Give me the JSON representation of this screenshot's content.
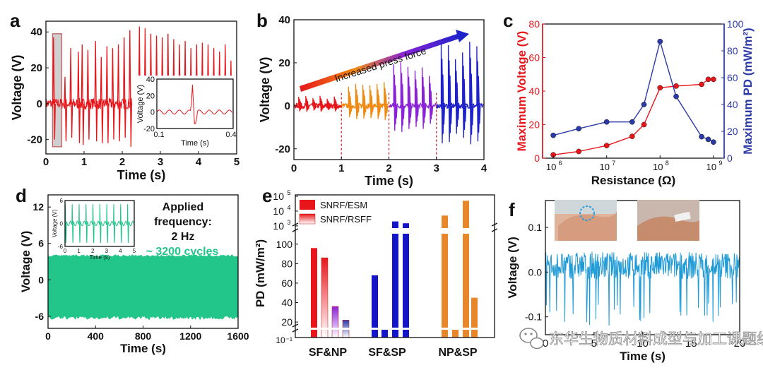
{
  "watermark": "东华生物质材料成型与加工课题组",
  "colors": {
    "red": "#e8161b",
    "orange": "#f08a12",
    "purple": "#8a22d8",
    "blue": "#1e22c8",
    "navy": "#2c3aa8",
    "green": "#22c58a",
    "cyan": "#1e9ad6",
    "ebar_blue": "#1414c8",
    "ebar_orange": "#e8862a"
  },
  "chart_data": [
    {
      "panel": "a",
      "type": "line",
      "xlabel": "Time (s)",
      "ylabel": "Voltage (V)",
      "xlim": [
        0,
        5
      ],
      "ylim": [
        -28,
        46
      ],
      "xticks": [
        0,
        1,
        2,
        3,
        4,
        5
      ],
      "yticks": [
        -20,
        0,
        20,
        40
      ],
      "series_color": "#e8161b",
      "baseline_segment": [
        0.0,
        2.25
      ],
      "spike_times": [
        0.2,
        0.5,
        0.65,
        0.85,
        0.95,
        1.1,
        1.3,
        1.45,
        1.6,
        1.75,
        1.9,
        2.05,
        2.2,
        2.45,
        2.6,
        2.75,
        2.9,
        3.05,
        3.2,
        3.35,
        3.5,
        3.65,
        3.8,
        3.95,
        4.1,
        4.25,
        4.4,
        4.55,
        4.7,
        4.85
      ],
      "spike_peaks": [
        37,
        15,
        31,
        29,
        33,
        30,
        35,
        26,
        32,
        31,
        33,
        37,
        41,
        43,
        42,
        39,
        38,
        37,
        39,
        36,
        33,
        35,
        31,
        33,
        34,
        33,
        31,
        29,
        33,
        24
      ],
      "spike_troughs": [
        -20,
        -21,
        -19,
        -22,
        -23,
        -20,
        -21,
        -22,
        -22,
        -20,
        -21,
        -19,
        -24,
        -22,
        -20,
        -20,
        -19,
        -20,
        -21,
        -19,
        -18,
        -19,
        -19,
        -19,
        -19,
        -18,
        -18,
        -18,
        -19,
        -17
      ],
      "highlight_box": [
        0.1,
        0.3
      ],
      "inset": {
        "xlabel": "Time (s)",
        "ylabel": "Voltage (V)",
        "xlim": [
          0.1,
          0.4
        ],
        "ylim": [
          -20,
          40
        ],
        "xtick_labels": [
          "0.1",
          "0.4"
        ],
        "ytick_labels": [
          "40",
          "20",
          "0",
          "-20"
        ],
        "spike_time": 0.24,
        "peak": 33,
        "trough": -15
      }
    },
    {
      "panel": "b",
      "type": "line",
      "xlabel": "Time (s)",
      "ylabel": "Voltage (V)",
      "xlim": [
        0,
        4
      ],
      "ylim": [
        -25,
        40
      ],
      "xticks": [
        0,
        1,
        2,
        3,
        4
      ],
      "yticks": [
        -20,
        0,
        20,
        40
      ],
      "annotation": "Increased press force",
      "divider_times": [
        1,
        2,
        3
      ],
      "segments": [
        {
          "color": "#e8161b",
          "start": 0,
          "end": 1,
          "spike_times": [
            0.1,
            0.25,
            0.4,
            0.55,
            0.7,
            0.85
          ],
          "amp": 4
        },
        {
          "color": "#f08a12",
          "start": 1,
          "end": 2,
          "spike_times": [
            1.15,
            1.3,
            1.45,
            1.6,
            1.75,
            1.9
          ],
          "amp": 10
        },
        {
          "color": "#8a22d8",
          "start": 2,
          "end": 3,
          "spike_times": [
            2.1,
            2.25,
            2.4,
            2.55,
            2.7,
            2.85
          ],
          "amp": 17
        },
        {
          "color": "#1e22c8",
          "start": 3,
          "end": 4,
          "spike_times": [
            3.1,
            3.25,
            3.4,
            3.55,
            3.7,
            3.85
          ],
          "amp": 27
        }
      ]
    },
    {
      "panel": "c",
      "type": "scatter",
      "xlabel": "Resistance (Ω)",
      "ylabel_left": "Maximum Voltage (V)",
      "ylabel_right": "Maximum PD (mW/m²)",
      "x_log": true,
      "xlim_exp": [
        5.8,
        9.2
      ],
      "xtick_exps": [
        6,
        7,
        8,
        9
      ],
      "xtick_labels": [
        "10",
        "10",
        "10",
        "10"
      ],
      "xtick_sups": [
        "6",
        "7",
        "8",
        "9"
      ],
      "ylim_left": [
        0,
        80
      ],
      "yticks_left": [
        0,
        20,
        40,
        60,
        80
      ],
      "ylim_right": [
        0,
        100
      ],
      "yticks_right": [
        0,
        20,
        40,
        60,
        80,
        100
      ],
      "series": [
        {
          "name": "Maximum Voltage",
          "axis": "left",
          "color": "#e8161b",
          "x": [
            1000000.0,
            3000000.0,
            10000000.0,
            30000000.0,
            50000000.0,
            100000000.0,
            200000000.0,
            600000000.0,
            800000000.0,
            1000000000.0
          ],
          "y": [
            2,
            4,
            7.5,
            13,
            20,
            42,
            43,
            44,
            47,
            47
          ]
        },
        {
          "name": "Maximum PD",
          "axis": "right",
          "color": "#2c3aa8",
          "x": [
            1000000.0,
            3000000.0,
            10000000.0,
            30000000.0,
            50000000.0,
            100000000.0,
            200000000.0,
            600000000.0,
            800000000.0,
            1000000000.0
          ],
          "y": [
            17,
            22,
            27,
            27,
            40,
            87,
            46,
            16,
            14,
            12
          ]
        }
      ]
    },
    {
      "panel": "d",
      "type": "area",
      "xlabel": "Time (s)",
      "ylabel": "Voltage (V)",
      "xlim": [
        0,
        1600
      ],
      "ylim": [
        -8,
        14
      ],
      "xticks": [
        0,
        400,
        800,
        1200,
        1600
      ],
      "yticks": [
        -6,
        0,
        6,
        12
      ],
      "band_min": -6.3,
      "band_max": 4,
      "text_lines": [
        "Applied",
        "frequency:",
        "2 Hz"
      ],
      "cycles_label": "~ 3200 cycles",
      "inset": {
        "xlabel": "Time (s)",
        "ylabel": "Voltage (V)",
        "xlim": [
          0,
          5
        ],
        "ylim": [
          -6,
          6
        ],
        "xtick_labels": [
          "0",
          "1",
          "2",
          "3",
          "4",
          "5"
        ],
        "ytick_labels": [
          "6",
          "0",
          "-6"
        ],
        "freq_hz": 2
      }
    },
    {
      "panel": "e",
      "type": "bar",
      "ylabel": "PD (mW/m²)",
      "categories": [
        "SF&NP",
        "SF&SP",
        "NP&SP"
      ],
      "legend": [
        "SNRF/ESM",
        "SNRF/RSFF"
      ],
      "bottom_label": "10⁻¹",
      "lower_axis": {
        "ylim": [
          15,
          110
        ],
        "ticks": [
          20,
          40,
          60,
          80,
          100
        ]
      },
      "upper_axis": {
        "log_exp_range": [
          2.9,
          5
        ],
        "tick_exps": [
          3,
          4,
          5
        ]
      },
      "bars": [
        {
          "group": "SF&NP",
          "style": "red-solid",
          "value": 96
        },
        {
          "group": "SF&NP",
          "style": "red-fade",
          "value": 86
        },
        {
          "group": "SF&NP",
          "style": "purple-fade",
          "value": 36
        },
        {
          "group": "SF&NP",
          "style": "navy-fade",
          "value": 22
        },
        {
          "group": "SF&SP",
          "style": "blue",
          "value": 68
        },
        {
          "group": "SF&SP",
          "style": "blue",
          "value": 0.1
        },
        {
          "group": "SF&SP",
          "style": "blue",
          "value": 2000
        },
        {
          "group": "SF&SP",
          "style": "blue",
          "value": 1500
        },
        {
          "group": "NP&SP",
          "style": "orange",
          "value": 5000
        },
        {
          "group": "NP&SP",
          "style": "orange",
          "value": 0.1
        },
        {
          "group": "NP&SP",
          "style": "orange",
          "value": 50000
        },
        {
          "group": "NP&SP",
          "style": "orange",
          "value": 45
        }
      ]
    },
    {
      "panel": "f",
      "type": "line",
      "xlabel": "Time (s)",
      "ylabel": "Voltage (V)",
      "xlim": [
        0,
        20
      ],
      "ylim": [
        -0.14,
        0.16
      ],
      "xticks": [
        0,
        5,
        10,
        15,
        20
      ],
      "yticks": [
        -0.1,
        0.0,
        0.1
      ],
      "ytick_labels": [
        "-0.1",
        "0.0",
        "0.1"
      ],
      "series_color": "#1e9ad6",
      "photo_labels": [
        "wrist-pulse-photo-1",
        "wrist-pulse-photo-2"
      ]
    }
  ]
}
